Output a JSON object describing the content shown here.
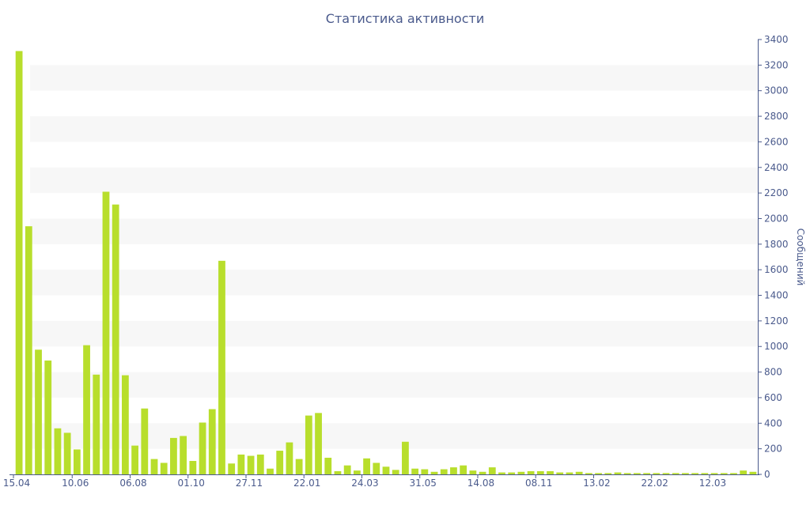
{
  "chart_data": {
    "type": "bar",
    "title": "Статистика активности",
    "ylabel": "Сообщений",
    "xlabel": "",
    "ylim": [
      0,
      3400
    ],
    "y_ticks": [
      0,
      200,
      400,
      600,
      800,
      1000,
      1200,
      1400,
      1600,
      1800,
      2000,
      2200,
      2400,
      2600,
      2800,
      3000,
      3200,
      3400
    ],
    "y_axis_side": "right",
    "grid": "alternating horizontal bands",
    "x_tick_labels": [
      {
        "index": 0,
        "label": "15.04"
      },
      {
        "index": 6,
        "label": "10.06"
      },
      {
        "index": 12,
        "label": "06.08"
      },
      {
        "index": 18,
        "label": "01.10"
      },
      {
        "index": 24,
        "label": "27.11"
      },
      {
        "index": 30,
        "label": "22.01"
      },
      {
        "index": 36,
        "label": "24.03"
      },
      {
        "index": 42,
        "label": "31.05"
      },
      {
        "index": 48,
        "label": "14.08"
      },
      {
        "index": 54,
        "label": "08.11"
      },
      {
        "index": 60,
        "label": "13.02"
      },
      {
        "index": 66,
        "label": "22.02"
      },
      {
        "index": 72,
        "label": "12.03"
      }
    ],
    "values": [
      3310,
      1940,
      975,
      890,
      360,
      325,
      195,
      1010,
      780,
      2210,
      2110,
      775,
      225,
      515,
      120,
      90,
      285,
      300,
      105,
      405,
      510,
      1670,
      85,
      155,
      145,
      155,
      45,
      185,
      250,
      120,
      460,
      480,
      130,
      25,
      70,
      30,
      125,
      90,
      60,
      35,
      255,
      45,
      40,
      20,
      40,
      55,
      70,
      30,
      20,
      55,
      15,
      15,
      20,
      25,
      25,
      25,
      15,
      15,
      20,
      10,
      10,
      10,
      15,
      10,
      10,
      10,
      10,
      10,
      10,
      10,
      10,
      10,
      10,
      10,
      10,
      30,
      20
    ],
    "colors": {
      "bar": "#b8de2c",
      "band": "#f7f7f7",
      "text": "#4a5a8c",
      "axis": "#4a5a8c"
    }
  }
}
